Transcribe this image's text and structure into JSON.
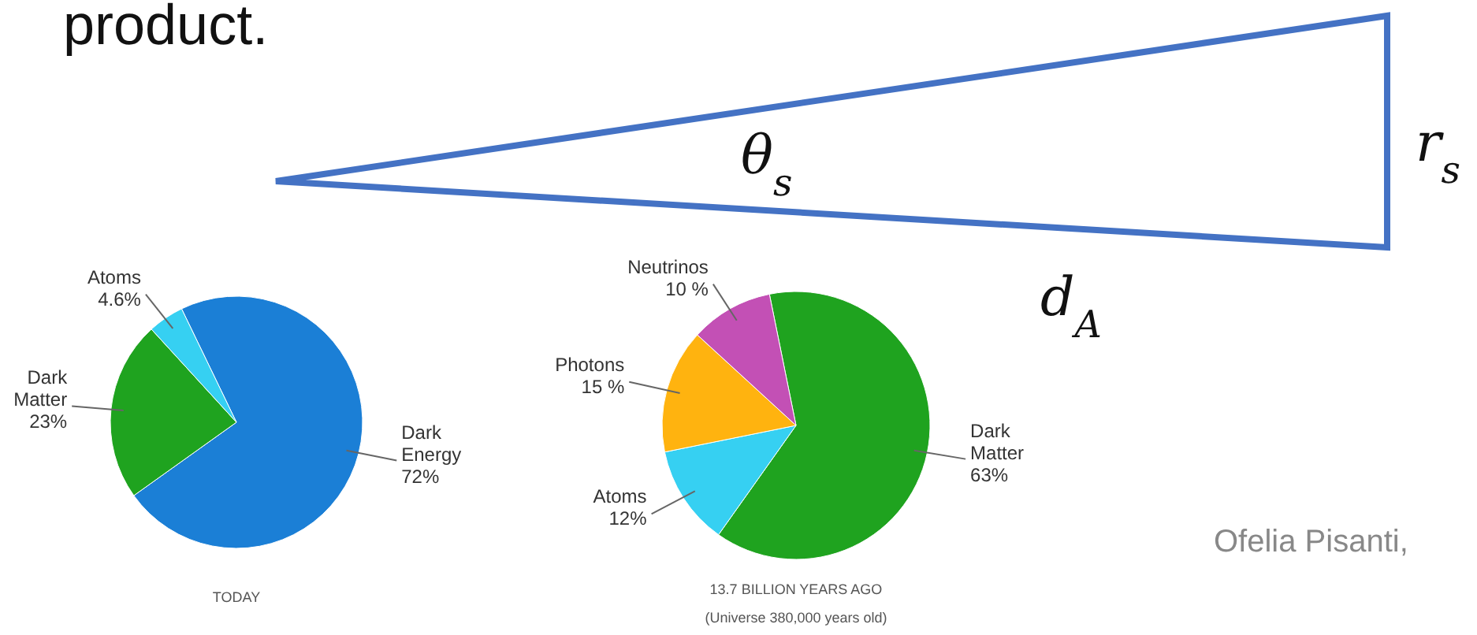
{
  "chart_data": [
    {
      "type": "pie",
      "title": "TODAY",
      "categories": [
        "Dark Energy",
        "Dark Matter",
        "Atoms"
      ],
      "values": [
        72,
        23,
        4.6
      ],
      "value_labels": [
        "72%",
        "23%",
        "4.6%"
      ],
      "colors": [
        "#1b7fd6",
        "#1fa31f",
        "#36d0f2"
      ]
    },
    {
      "type": "pie",
      "title": "13.7 BILLION YEARS AGO",
      "subtitle": "(Universe 380,000 years old)",
      "categories": [
        "Dark Matter",
        "Atoms",
        "Photons",
        "Neutrinos"
      ],
      "values": [
        63,
        12,
        15,
        10
      ],
      "value_labels": [
        "63%",
        "12%",
        "15 %",
        "10 %"
      ],
      "colors": [
        "#1fa31f",
        "#36d0f2",
        "#ffb30f",
        "#c350b5"
      ]
    },
    {
      "type": "other",
      "annotations": [
        "product.",
        "θ$_{s}$",
        "r$_{s}$",
        "d$_{A}$",
        "Ofelia Pisanti,"
      ]
    }
  ]
}
